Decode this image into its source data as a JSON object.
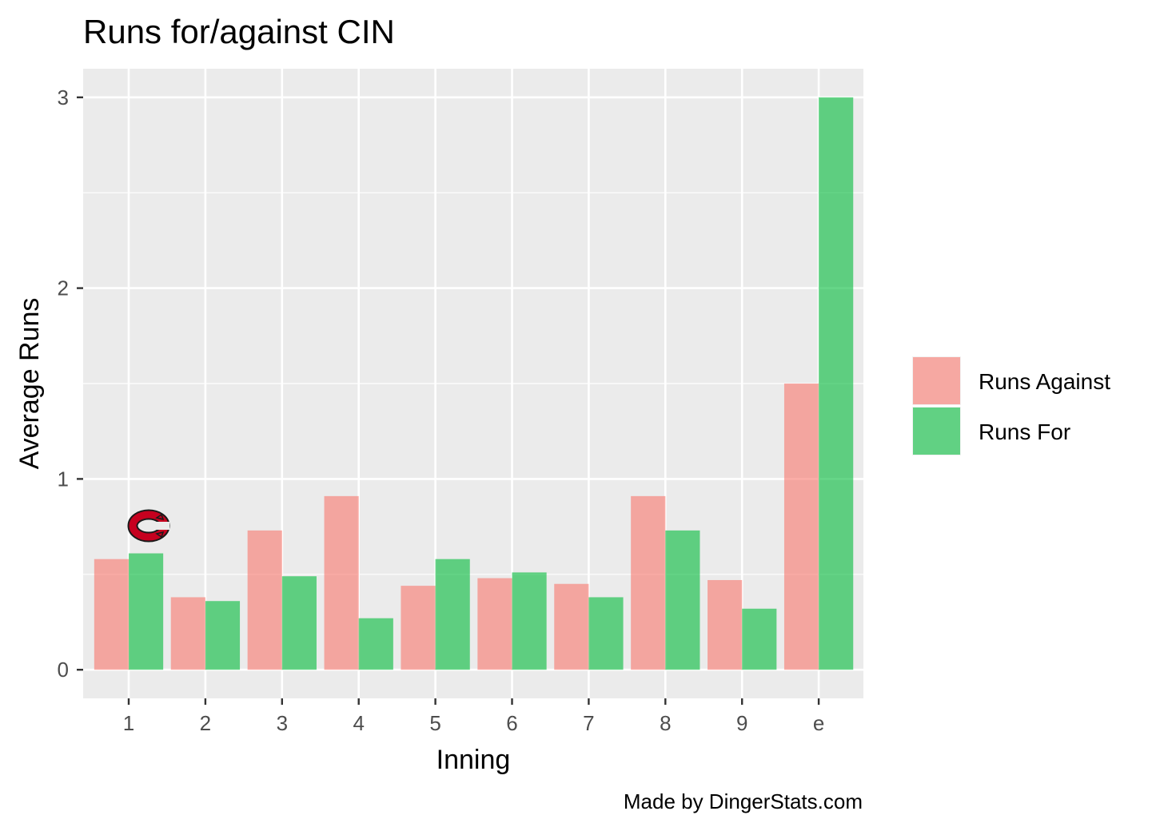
{
  "chart_data": {
    "type": "bar",
    "title": "Runs for/against CIN",
    "xlabel": "Inning",
    "ylabel": "Average Runs",
    "categories": [
      "1",
      "2",
      "3",
      "4",
      "5",
      "6",
      "7",
      "8",
      "9",
      "e"
    ],
    "series": [
      {
        "name": "Runs Against",
        "color": "#F8766D",
        "values": [
          0.58,
          0.38,
          0.73,
          0.91,
          0.44,
          0.48,
          0.45,
          0.91,
          0.47,
          1.5
        ]
      },
      {
        "name": "Runs For",
        "color": "#00BA38",
        "values": [
          0.61,
          0.36,
          0.49,
          0.27,
          0.58,
          0.51,
          0.38,
          0.73,
          0.32,
          3.0
        ]
      }
    ],
    "yticks": [
      0,
      1,
      2,
      3
    ],
    "ylim": [
      -0.15,
      3.15
    ],
    "grid": true,
    "legend_position": "right",
    "bar_opacity": 0.6,
    "panel_background": "#EBEBEB",
    "logo": "cincinnati-reds-c-logo",
    "caption": "Made by DingerStats.com"
  }
}
